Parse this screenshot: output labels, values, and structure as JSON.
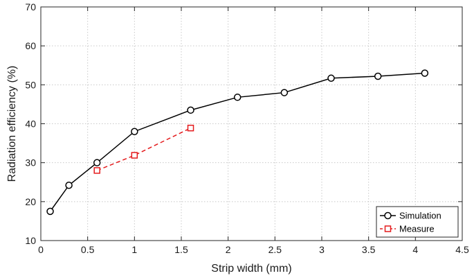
{
  "chart_data": {
    "type": "line",
    "xlabel": "Strip width (mm)",
    "ylabel": "Radiation efficiency (%)",
    "xlim": [
      0,
      4.5
    ],
    "ylim": [
      10,
      70
    ],
    "xticks": [
      0,
      0.5,
      1,
      1.5,
      2,
      2.5,
      3,
      3.5,
      4,
      4.5
    ],
    "yticks": [
      10,
      20,
      30,
      40,
      50,
      60,
      70
    ],
    "xtick_labels": [
      "0",
      "0.5",
      "1",
      "1.5",
      "2",
      "2.5",
      "3",
      "3.5",
      "4",
      "4.5"
    ],
    "ytick_labels": [
      "10",
      "20",
      "30",
      "40",
      "50",
      "60",
      "70"
    ],
    "grid": true,
    "legend_position": "bottom-right",
    "series": [
      {
        "name": "Simulation",
        "color": "#000000",
        "line_style": "solid",
        "marker": "circle",
        "x": [
          0.1,
          0.3,
          0.6,
          1.0,
          1.6,
          2.1,
          2.6,
          3.1,
          3.6,
          4.1
        ],
        "y": [
          17.5,
          24.2,
          30.0,
          38.0,
          43.5,
          46.8,
          48.0,
          51.7,
          52.2,
          53.0
        ]
      },
      {
        "name": "Measure",
        "color": "#e41a1c",
        "line_style": "dashed",
        "marker": "square",
        "x": [
          0.6,
          1.0,
          1.6
        ],
        "y": [
          28.0,
          31.9,
          38.9
        ]
      }
    ]
  }
}
